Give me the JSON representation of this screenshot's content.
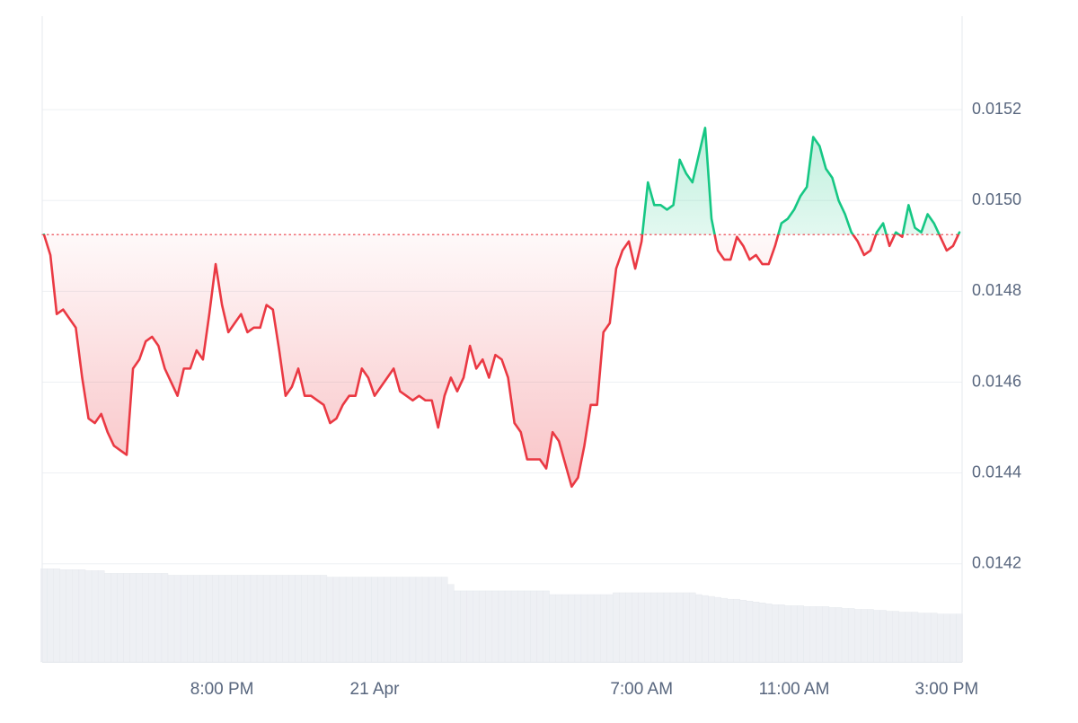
{
  "chart_data": {
    "type": "line",
    "categories": [
      null,
      null,
      null,
      null,
      null,
      null,
      null,
      null,
      null,
      null,
      null,
      null,
      null,
      null,
      null,
      null,
      null,
      null,
      null,
      null,
      null,
      null,
      null,
      null,
      null,
      null,
      null,
      null,
      "8:00 PM",
      null,
      null,
      null,
      null,
      null,
      null,
      null,
      null,
      null,
      null,
      null,
      null,
      null,
      null,
      null,
      null,
      null,
      null,
      null,
      null,
      null,
      null,
      null,
      "21 Apr",
      null,
      null,
      null,
      null,
      null,
      null,
      null,
      null,
      null,
      null,
      null,
      null,
      null,
      null,
      null,
      null,
      null,
      null,
      null,
      null,
      null,
      null,
      null,
      null,
      null,
      null,
      null,
      null,
      null,
      null,
      null,
      null,
      null,
      null,
      null,
      null,
      null,
      null,
      null,
      null,
      null,
      "7:00 AM",
      null,
      null,
      null,
      null,
      null,
      null,
      null,
      null,
      null,
      null,
      null,
      null,
      null,
      null,
      null,
      null,
      null,
      null,
      null,
      null,
      null,
      null,
      null,
      "11:00 AM",
      null,
      null,
      null,
      null,
      null,
      null,
      null,
      null,
      null,
      null,
      null,
      null,
      null,
      null,
      null,
      null,
      null,
      null,
      null,
      null,
      null,
      null,
      null,
      "3:00 PM",
      null,
      null
    ],
    "series": [
      {
        "color": "#ea3943",
        "up_color": "#16c784",
        "values": [
          0.014925,
          0.01488,
          0.01475,
          0.01476,
          0.01474,
          0.01472,
          0.01461,
          0.01452,
          0.01451,
          0.01453,
          0.01449,
          0.01446,
          0.01445,
          0.01444,
          0.01463,
          0.01465,
          0.01469,
          0.0147,
          0.01468,
          0.01463,
          0.0146,
          0.01457,
          0.01463,
          0.01463,
          0.01467,
          0.01465,
          0.01475,
          0.01486,
          0.01477,
          0.01471,
          0.01473,
          0.01475,
          0.01471,
          0.01472,
          0.01472,
          0.01477,
          0.01476,
          0.01467,
          0.01457,
          0.01459,
          0.01463,
          0.01457,
          0.01457,
          0.01456,
          0.01455,
          0.01451,
          0.01452,
          0.01455,
          0.01457,
          0.01457,
          0.01463,
          0.01461,
          0.01457,
          0.01459,
          0.01461,
          0.01463,
          0.01458,
          0.01457,
          0.01456,
          0.01457,
          0.01456,
          0.01456,
          0.0145,
          0.01457,
          0.01461,
          0.01458,
          0.01461,
          0.01468,
          0.01463,
          0.01465,
          0.01461,
          0.01466,
          0.01465,
          0.01461,
          0.01451,
          0.01449,
          0.01443,
          0.01443,
          0.01443,
          0.01441,
          0.01449,
          0.01447,
          0.01442,
          0.01437,
          0.01439,
          0.01446,
          0.01455,
          0.01455,
          0.01471,
          0.01473,
          0.01485,
          0.01489,
          0.01491,
          0.01485,
          0.01491,
          0.01504,
          0.01499,
          0.01499,
          0.01498,
          0.01499,
          0.01509,
          0.01506,
          0.01504,
          0.0151,
          0.01516,
          0.01496,
          0.01489,
          0.01487,
          0.01487,
          0.01492,
          0.0149,
          0.01487,
          0.01488,
          0.01486,
          0.01486,
          0.0149,
          0.01495,
          0.01496,
          0.01498,
          0.01501,
          0.01503,
          0.01514,
          0.01512,
          0.01507,
          0.01505,
          0.015,
          0.01497,
          0.01493,
          0.01491,
          0.01488,
          0.01489,
          0.01493,
          0.01495,
          0.0149,
          0.01493,
          0.01492,
          0.01499,
          0.01494,
          0.01493,
          0.01497,
          0.01495,
          0.01492,
          0.01489,
          0.0149,
          0.01493
        ]
      },
      {
        "type": "bar",
        "axis": "y2",
        "color": "#eef0f4",
        "values": [
          101,
          101,
          101,
          100,
          100,
          100,
          100,
          99,
          99,
          99,
          96,
          96,
          96,
          96,
          96,
          96,
          96,
          96,
          96,
          96,
          94,
          94,
          94,
          94,
          94,
          94,
          94,
          94,
          94,
          94,
          94,
          94,
          94,
          94,
          94,
          94,
          94,
          94,
          94,
          94,
          94,
          94,
          94,
          94,
          94,
          92,
          92,
          92,
          92,
          92,
          92,
          92,
          92,
          92,
          92,
          92,
          92,
          92,
          92,
          92,
          92,
          92,
          92,
          92,
          84,
          77,
          77,
          77,
          77,
          77,
          77,
          77,
          77,
          77,
          77,
          77,
          77,
          77,
          77,
          77,
          73,
          73,
          73,
          73,
          73,
          73,
          73,
          73,
          73,
          73,
          75,
          75,
          75,
          75,
          75,
          75,
          75,
          75,
          75,
          75,
          75,
          75,
          75,
          73,
          72,
          71,
          70,
          69,
          68,
          68,
          67,
          66,
          65,
          64,
          63,
          62,
          62,
          61,
          61,
          61,
          60,
          60,
          60,
          60,
          59,
          59,
          58,
          58,
          57,
          57,
          57,
          56,
          56,
          55,
          55,
          54,
          54,
          54,
          53,
          53,
          53,
          52,
          52,
          52,
          52
        ]
      }
    ],
    "baseline": 0.014925,
    "ylim": [
      0.013984,
      0.015406
    ],
    "yticks": [
      0.0142,
      0.0144,
      0.0146,
      0.0148,
      {
        "value": 0.015,
        "label": "0.0150"
      },
      0.0152
    ],
    "y2lim": [
      0,
      700
    ],
    "grid": true
  }
}
